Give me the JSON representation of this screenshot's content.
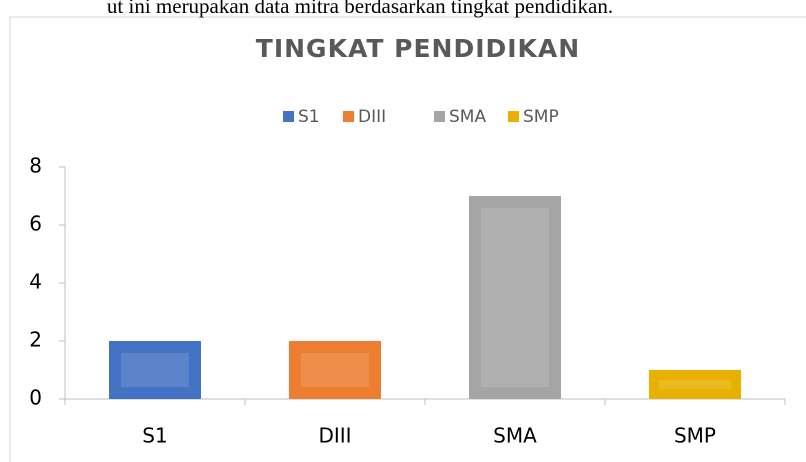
{
  "caption": "ut ini merupakan data mitra berdasarkan tingkat pendidikan.",
  "chart_data": {
    "type": "bar",
    "title": "TINGKAT PENDIDIKAN",
    "categories": [
      "S1",
      "DIII",
      "SMA",
      "SMP"
    ],
    "values": [
      2,
      2,
      7,
      1
    ],
    "colors": [
      "#4472c4",
      "#ed7d31",
      "#a5a5a5",
      "#e8b000"
    ],
    "ylim": [
      0,
      8
    ],
    "yticks": [
      0,
      2,
      4,
      6,
      8
    ],
    "grid": false,
    "legend": "top"
  }
}
